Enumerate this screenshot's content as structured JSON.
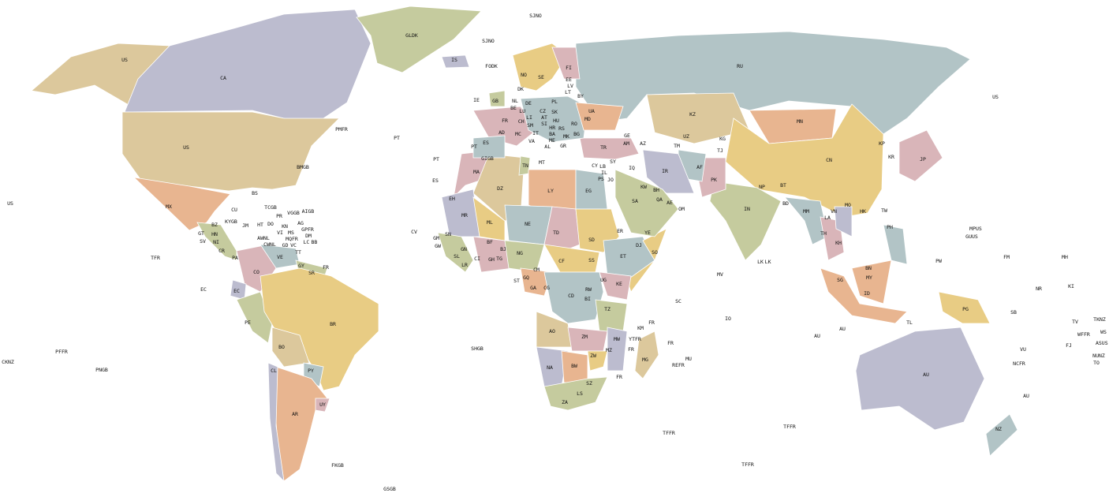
{
  "map": {
    "type": "world-choropleth",
    "palette": {
      "purple": "#bcbccf",
      "tan": "#dcc89c",
      "green": "#c5cb9e",
      "pink": "#d9b5b9",
      "blue": "#b2c4c6",
      "orange": "#e8b590",
      "yellow": "#e8cc84"
    },
    "labels": [
      "US",
      "CA",
      "GLDK",
      "SJNO",
      "SJNO",
      "IS",
      "FODK",
      "RU",
      "US",
      "FI",
      "NO",
      "SE",
      "EE",
      "LV",
      "LT",
      "DK",
      "BY",
      "IE",
      "GB",
      "NL",
      "DE",
      "PL",
      "BE",
      "LU",
      "CZ",
      "SK",
      "UA",
      "FR",
      "LI",
      "AT",
      "HU",
      "MD",
      "CH",
      "SI",
      "RO",
      "SM",
      "HR",
      "RS",
      "BG",
      "BA",
      "AD",
      "MC",
      "IT",
      "ME",
      "MK",
      "GR",
      "AL",
      "PT",
      "ES",
      "VA",
      "TR",
      "GE",
      "AM",
      "AZ",
      "KZ",
      "MN",
      "UZ",
      "TM",
      "KG",
      "TJ",
      "AF",
      "IR",
      "IQ",
      "SY",
      "CY",
      "LB",
      "IL",
      "PS",
      "JO",
      "KW",
      "SA",
      "BH",
      "QA",
      "AE",
      "OM",
      "YE",
      "PK",
      "IN",
      "NP",
      "BT",
      "BD",
      "CN",
      "KP",
      "KR",
      "JP",
      "TW",
      "HK",
      "MO",
      "MM",
      "LA",
      "VN",
      "TH",
      "KH",
      "PH",
      "MY",
      "BN",
      "SG",
      "ID",
      "PG",
      "TL",
      "AU",
      "NZ",
      "US",
      "MX",
      "BMGB",
      "BS",
      "TCGB",
      "CU",
      "KYGB",
      "JM",
      "HT",
      "DO",
      "PR",
      "BZ",
      "GT",
      "SV",
      "HN",
      "NI",
      "CR",
      "PA",
      "CO",
      "VE",
      "GY",
      "SR",
      "FR",
      "EC",
      "PE",
      "BR",
      "BO",
      "PY",
      "CL",
      "AR",
      "UY",
      "FKGB",
      "GSGB",
      "PMFR",
      "PT",
      "PT",
      "ES",
      "CV",
      "GIGB",
      "MA",
      "DZ",
      "TN",
      "MT",
      "LY",
      "EG",
      "EH",
      "MR",
      "ML",
      "NE",
      "TD",
      "SD",
      "ER",
      "DJ",
      "SO",
      "ET",
      "SN",
      "GM",
      "GW",
      "GN",
      "SL",
      "LR",
      "CI",
      "BF",
      "GH",
      "TG",
      "BJ",
      "NG",
      "CM",
      "CF",
      "SS",
      "CG",
      "GA",
      "GQ",
      "ST",
      "CD",
      "UG",
      "KE",
      "RW",
      "BI",
      "TZ",
      "AO",
      "ZM",
      "MW",
      "MZ",
      "ZW",
      "NA",
      "BW",
      "ZA",
      "LS",
      "SZ",
      "MG",
      "KM",
      "YTFR",
      "SC",
      "MU",
      "REFR",
      "SHGB",
      "IO",
      "MV",
      "LK",
      "US",
      "TFR",
      "EC",
      "CKNZ",
      "PFFR",
      "PNGB",
      "MPUS",
      "GUUS",
      "PW",
      "FM",
      "MH",
      "NR",
      "KI",
      "SB",
      "TV",
      "WFFR",
      "TKNZ",
      "WS",
      "FJ",
      "ASUS",
      "VU",
      "NCFR",
      "NUNZ",
      "TO",
      "AU",
      "AU",
      "AU",
      "TFFR",
      "TFFR",
      "TFFR",
      "FR",
      "FR",
      "FR",
      "FR",
      "KN",
      "AG",
      "MS",
      "GPFR",
      "DM",
      "MQFR",
      "LC",
      "VC",
      "BB",
      "GD",
      "TT",
      "AWNL",
      "CWNL",
      "VGGB",
      "AIGB",
      "VI",
      "LK"
    ]
  }
}
